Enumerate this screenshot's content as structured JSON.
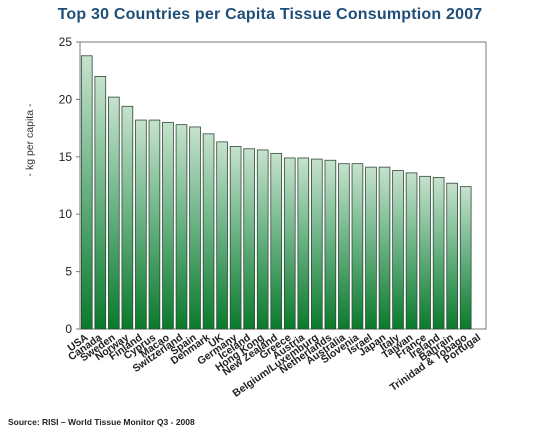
{
  "chart_data": {
    "type": "bar",
    "title": "Top 30 Countries per Capita Tissue Consumption 2007",
    "ylabel": "- kg per capita -",
    "xlabel": "",
    "ylim": [
      0,
      25
    ],
    "yticks": [
      0,
      5,
      10,
      15,
      20,
      25
    ],
    "categories": [
      "USA",
      "Canada",
      "Sweden",
      "Norway",
      "Finland",
      "Cyprus",
      "Macao",
      "Switzerland",
      "Spain",
      "Denmark",
      "UK",
      "Germany",
      "Iceland",
      "Hong Kong",
      "New Zealand",
      "Greece",
      "Austria",
      "Belgium/Luxemburg",
      "Netherlands",
      "Australia",
      "Slovenia",
      "Israel",
      "Japan",
      "Italy",
      "Taiwan",
      "France",
      "Ireland",
      "Bahrain",
      "Trinidad & Tobago",
      "Portugal"
    ],
    "values": [
      23.8,
      22.0,
      20.2,
      19.4,
      18.2,
      18.2,
      18.0,
      17.8,
      17.6,
      17.0,
      16.3,
      15.9,
      15.7,
      15.6,
      15.3,
      14.9,
      14.9,
      14.8,
      14.7,
      14.4,
      14.4,
      14.1,
      14.1,
      13.8,
      13.6,
      13.3,
      13.2,
      12.7,
      12.4,
      0
    ],
    "grid": false
  },
  "source": "Source: RISI – World Tissue Monitor Q3 - 2008",
  "colors": {
    "bar_top": "#c6e2cd",
    "bar_bottom": "#0a7a2c",
    "title": "#1f4e79"
  }
}
